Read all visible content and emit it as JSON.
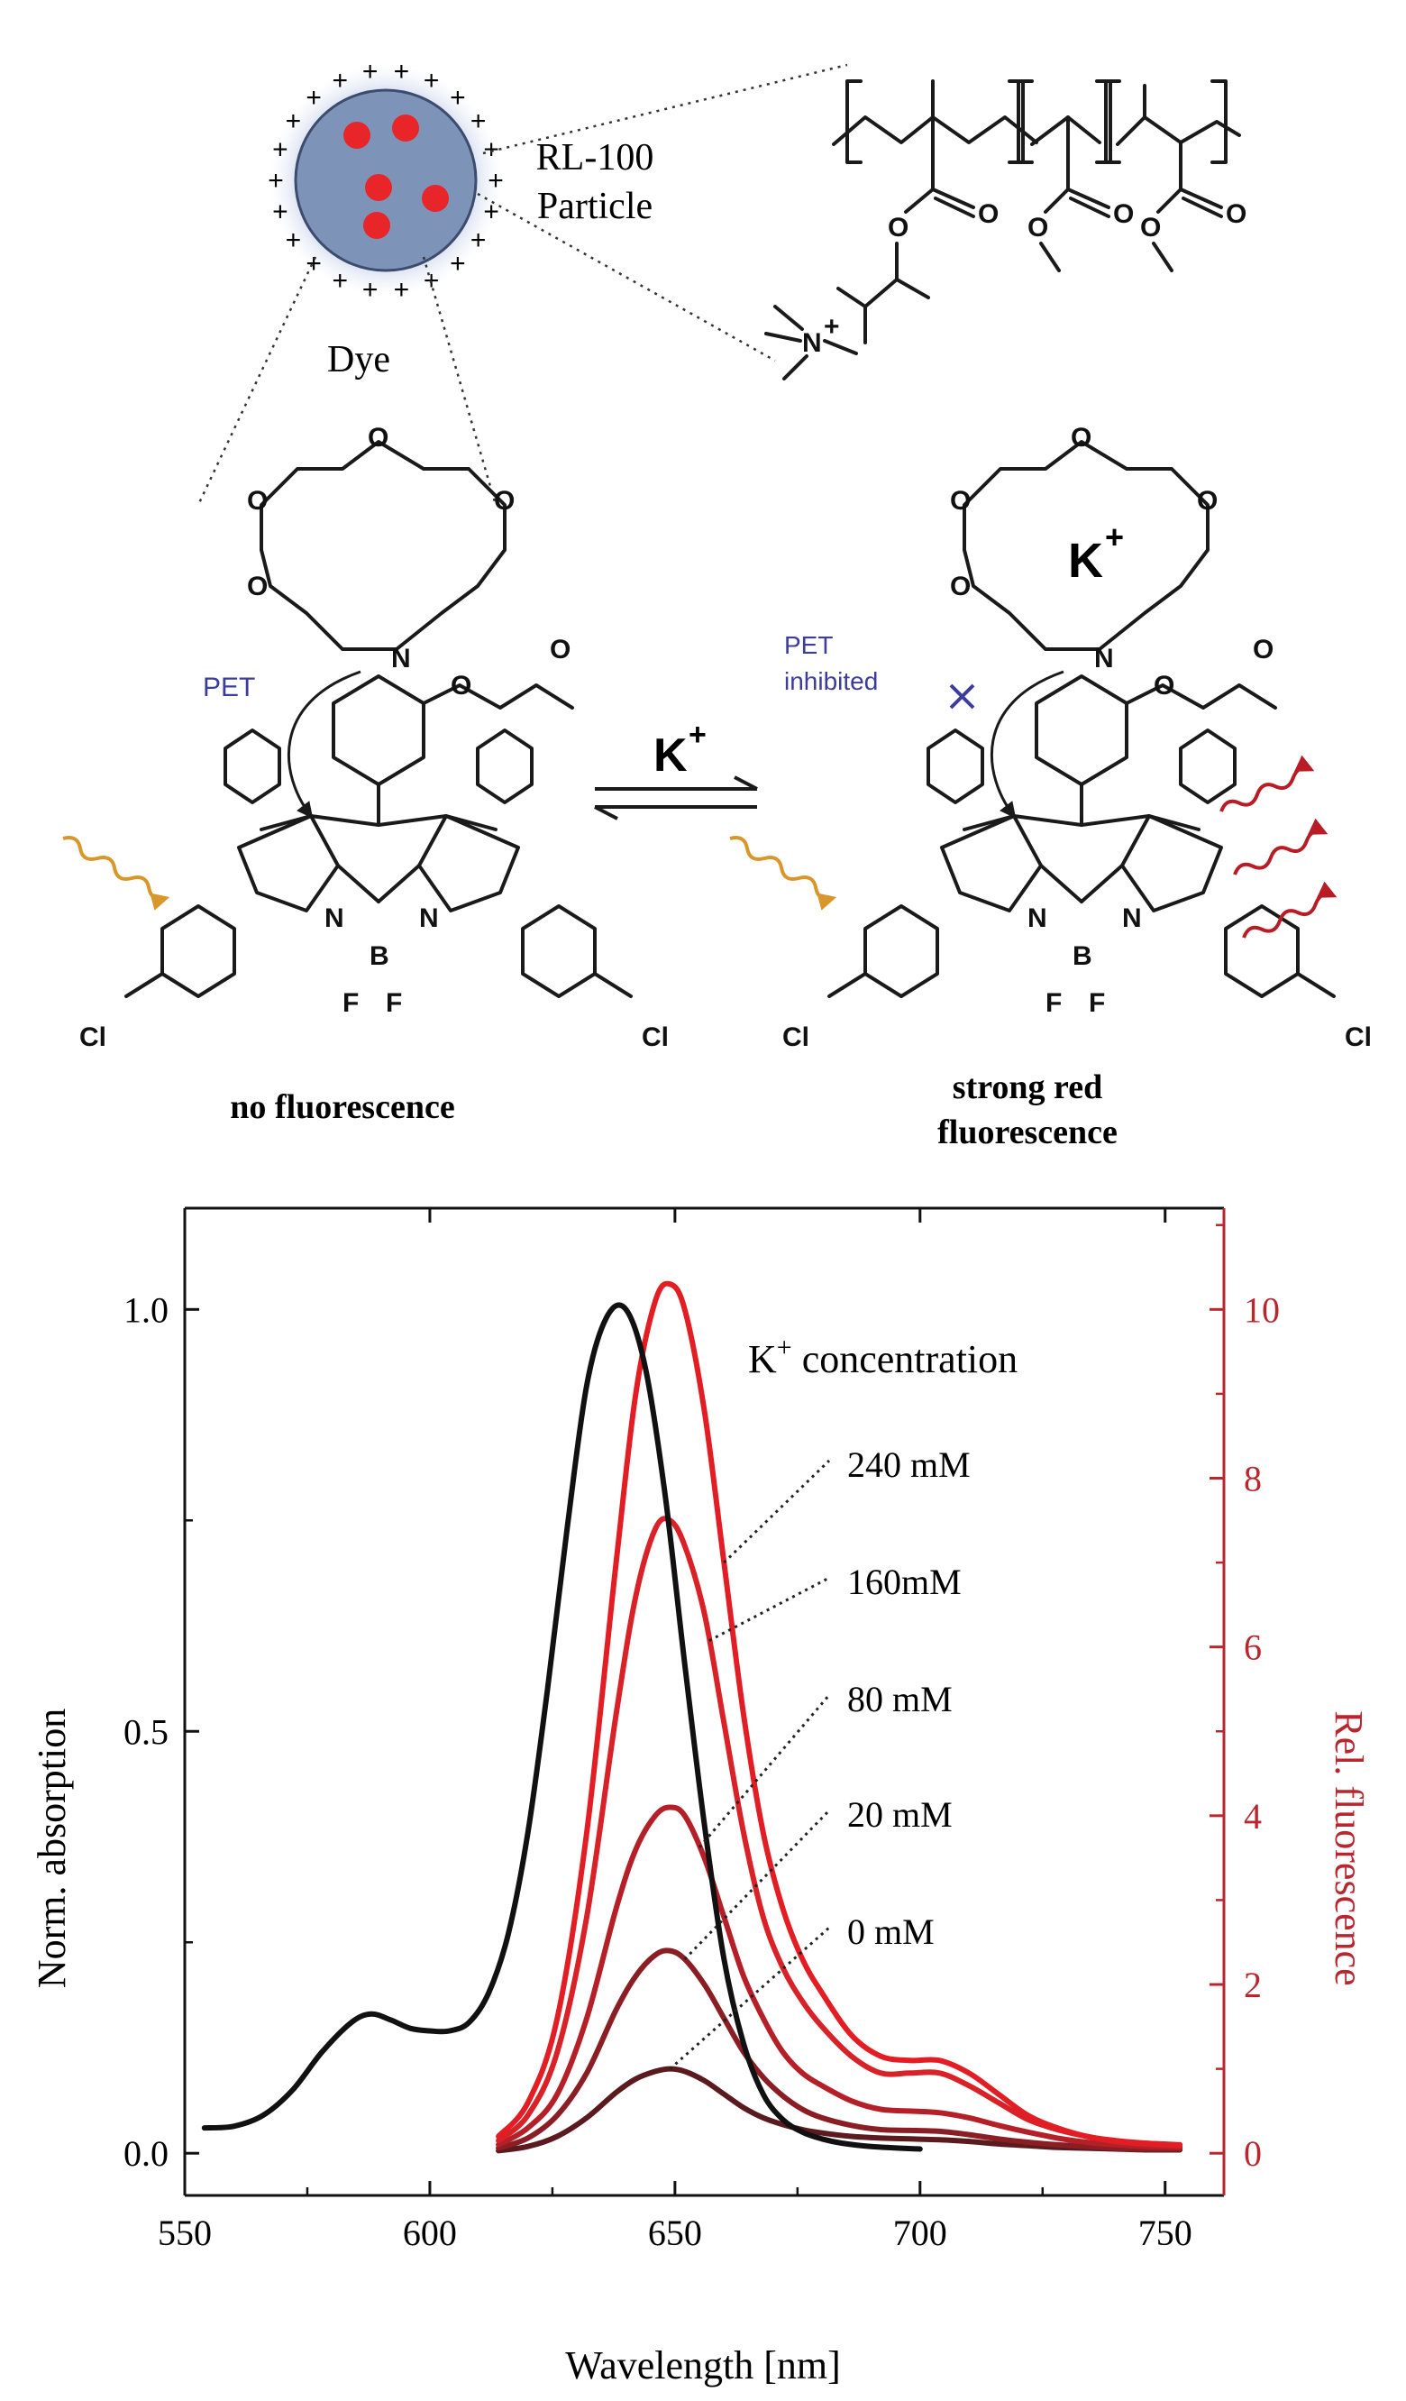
{
  "scheme": {
    "particle_label_line1": "RL-100",
    "particle_label_line2": "Particle",
    "dye_label": "Dye",
    "pet_label": "PET",
    "pet_inhibited_line1": "PET",
    "pet_inhibited_line2": "inhibited",
    "arrow_label": "K",
    "arrow_label_sup": "+",
    "crown_ion": "K",
    "crown_ion_sup": "+",
    "left_caption": "no fluorescence",
    "right_caption_line1": "strong red",
    "right_caption_line2": "fluorescence",
    "atoms": {
      "O": "O",
      "N": "N",
      "B": "B",
      "F": "F",
      "Cl": "Cl",
      "Nplus": "N",
      "plus": "+"
    },
    "charge_symbol": "+",
    "colors": {
      "particle": "#7e93b8",
      "dye_dot": "#e8262a",
      "excite_arrow": "#d9962a",
      "emit_arrow": "#b81c24",
      "pet_text": "#3c3c9a"
    }
  },
  "chart_data": {
    "type": "line",
    "xlabel": "Wavelength [nm]",
    "ylabel_left": "Norm. absorption",
    "ylabel_right": "Rel. fluorescence",
    "xlim": [
      550,
      762
    ],
    "ylim_left": [
      -0.05,
      1.12
    ],
    "ylim_right": [
      -0.5,
      11.2
    ],
    "xticks": [
      "550",
      "600",
      "650",
      "700",
      "750"
    ],
    "yticks_left": [
      "0.0",
      "0.5",
      "1.0"
    ],
    "yticks_right": [
      "0",
      "2",
      "4",
      "6",
      "8",
      "10"
    ],
    "legend_title": "K",
    "legend_title_sup": "+",
    "legend_title_rest": " concentration",
    "grid": false,
    "series": [
      {
        "name": "absorption",
        "axis": "left",
        "color": "#111111",
        "x": [
          554,
          560,
          566,
          572,
          578,
          584,
          588,
          592,
          596,
          600,
          604,
          608,
          612,
          616,
          620,
          624,
          628,
          632,
          636,
          640,
          644,
          648,
          652,
          656,
          660,
          664,
          668,
          672,
          676,
          680,
          684,
          690,
          700
        ],
        "y": [
          0.03,
          0.032,
          0.045,
          0.075,
          0.12,
          0.155,
          0.165,
          0.158,
          0.148,
          0.145,
          0.145,
          0.155,
          0.19,
          0.26,
          0.38,
          0.55,
          0.74,
          0.91,
          0.99,
          1.0,
          0.93,
          0.78,
          0.58,
          0.39,
          0.23,
          0.13,
          0.07,
          0.04,
          0.025,
          0.017,
          0.012,
          0.008,
          0.005
        ]
      },
      {
        "name": "240 mM",
        "axis": "right",
        "color": "#e31d24",
        "x": [
          614,
          620,
          626,
          632,
          638,
          642,
          646,
          649,
          652,
          656,
          660,
          664,
          668,
          672,
          676,
          680,
          686,
          692,
          698,
          704,
          710,
          716,
          722,
          728,
          734,
          740,
          746,
          753
        ],
        "y": [
          0.2,
          0.6,
          1.6,
          3.8,
          7.0,
          9.0,
          10.1,
          10.3,
          10.0,
          8.8,
          7.0,
          5.2,
          3.8,
          2.9,
          2.3,
          1.9,
          1.4,
          1.15,
          1.1,
          1.1,
          0.95,
          0.7,
          0.45,
          0.3,
          0.2,
          0.15,
          0.12,
          0.1
        ]
      },
      {
        "name": "160mM",
        "axis": "right",
        "color": "#d92128",
        "x": [
          614,
          620,
          626,
          632,
          638,
          642,
          646,
          649,
          652,
          656,
          660,
          664,
          668,
          672,
          676,
          680,
          686,
          692,
          698,
          704,
          710,
          716,
          722,
          728,
          734,
          740,
          746,
          753
        ],
        "y": [
          0.15,
          0.45,
          1.2,
          2.8,
          5.2,
          6.6,
          7.4,
          7.5,
          7.2,
          6.4,
          5.1,
          3.8,
          2.8,
          2.2,
          1.8,
          1.5,
          1.15,
          0.95,
          0.95,
          0.95,
          0.8,
          0.6,
          0.4,
          0.28,
          0.2,
          0.14,
          0.11,
          0.09
        ]
      },
      {
        "name": "80 mM",
        "axis": "right",
        "color": "#b52028",
        "x": [
          614,
          620,
          626,
          632,
          638,
          642,
          646,
          649,
          652,
          656,
          660,
          664,
          668,
          672,
          676,
          680,
          686,
          692,
          698,
          704,
          710,
          716,
          722,
          728,
          734,
          740,
          746,
          753
        ],
        "y": [
          0.1,
          0.3,
          0.7,
          1.6,
          2.9,
          3.6,
          4.0,
          4.1,
          4.0,
          3.5,
          2.8,
          2.1,
          1.6,
          1.2,
          0.95,
          0.8,
          0.62,
          0.52,
          0.5,
          0.48,
          0.42,
          0.33,
          0.25,
          0.18,
          0.13,
          0.1,
          0.08,
          0.07
        ]
      },
      {
        "name": "20 mM",
        "axis": "right",
        "color": "#8a1e24",
        "x": [
          614,
          620,
          626,
          632,
          638,
          642,
          646,
          649,
          652,
          656,
          660,
          664,
          668,
          672,
          676,
          680,
          686,
          692,
          698,
          704,
          710,
          716,
          722,
          728,
          734,
          740,
          746,
          753
        ],
        "y": [
          0.06,
          0.18,
          0.45,
          0.95,
          1.7,
          2.1,
          2.35,
          2.4,
          2.3,
          2.0,
          1.6,
          1.2,
          0.9,
          0.68,
          0.52,
          0.42,
          0.33,
          0.28,
          0.27,
          0.26,
          0.22,
          0.17,
          0.13,
          0.1,
          0.08,
          0.06,
          0.05,
          0.05
        ]
      },
      {
        "name": "0 mM",
        "axis": "right",
        "color": "#5a1a1e",
        "x": [
          614,
          620,
          626,
          632,
          638,
          642,
          646,
          649,
          652,
          656,
          660,
          664,
          668,
          672,
          676,
          680,
          686,
          692,
          698,
          704,
          710,
          716,
          722,
          728,
          734,
          740,
          746,
          753
        ],
        "y": [
          0.03,
          0.08,
          0.2,
          0.42,
          0.72,
          0.88,
          0.97,
          1.0,
          0.97,
          0.86,
          0.7,
          0.54,
          0.42,
          0.34,
          0.28,
          0.24,
          0.2,
          0.18,
          0.17,
          0.16,
          0.14,
          0.11,
          0.09,
          0.07,
          0.06,
          0.05,
          0.04,
          0.04
        ]
      }
    ],
    "annotations": [
      {
        "text": "240 mM",
        "series": "240 mM",
        "at_x": 660
      },
      {
        "text": "160mM",
        "series": "160mM",
        "at_x": 657
      },
      {
        "text": "80 mM",
        "series": "80 mM",
        "at_x": 655
      },
      {
        "text": "20 mM",
        "series": "20 mM",
        "at_x": 652
      },
      {
        "text": "0 mM",
        "series": "0 mM",
        "at_x": 649
      }
    ]
  }
}
